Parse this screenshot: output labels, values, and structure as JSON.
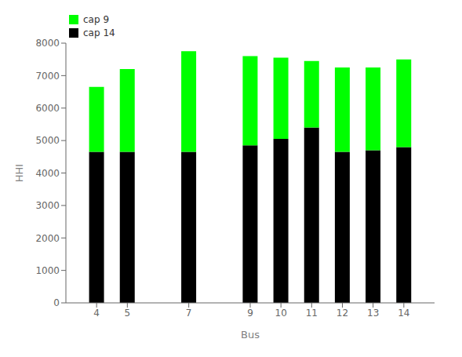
{
  "chart_data": {
    "type": "bar",
    "stacked": true,
    "x": [
      4,
      5,
      7,
      9,
      10,
      11,
      12,
      13,
      14
    ],
    "series": [
      {
        "name": "cap 14",
        "color": "#000000",
        "values": [
          4650,
          4650,
          4650,
          4850,
          5050,
          5400,
          4650,
          4700,
          4800
        ]
      },
      {
        "name": "cap 9",
        "color": "#00ff00",
        "values": [
          2000,
          2550,
          3100,
          2750,
          2500,
          2050,
          2600,
          2550,
          2700
        ]
      }
    ],
    "xlabel": "Bus",
    "ylabel": "HHI",
    "xlim": [
      3,
      15
    ],
    "xticks": [
      4,
      5,
      7,
      9,
      10,
      11,
      12,
      13,
      14
    ],
    "ylim": [
      0,
      8000
    ],
    "yticks": [
      0,
      1000,
      2000,
      3000,
      4000,
      5000,
      6000,
      7000,
      8000
    ],
    "grid": false,
    "legend": "upper left"
  }
}
